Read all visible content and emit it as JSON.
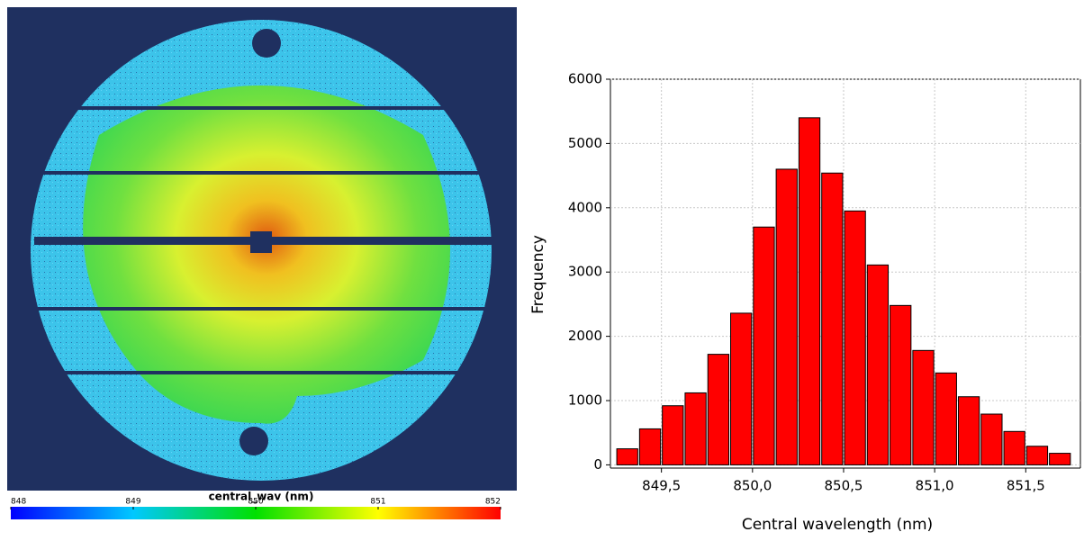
{
  "chart_data": [
    {
      "type": "image",
      "colorbar_title": "central_wav (nm)",
      "clim": [
        848,
        852
      ],
      "cticks": [
        848,
        849,
        850,
        851,
        852
      ],
      "colormap": [
        "#0000ff",
        "#00c8ff",
        "#00e000",
        "#ffff00",
        "#ff0000"
      ]
    },
    {
      "type": "histogram",
      "xlabel": "Central wavelength (nm)",
      "ylabel": "Frequency",
      "color": "#ff0000",
      "bins": [
        849.25,
        849.375,
        849.5,
        849.625,
        849.75,
        849.875,
        850,
        850.125,
        850.25,
        850.375,
        850.5,
        850.625,
        850.75,
        850.875,
        851,
        851.125,
        851.25,
        851.375,
        851.5,
        851.625,
        851.75
      ],
      "values": [
        250,
        560,
        920,
        1120,
        1720,
        2360,
        3700,
        4600,
        5400,
        4540,
        3950,
        3110,
        2480,
        1780,
        1430,
        1060,
        790,
        520,
        290,
        180
      ],
      "xlim": [
        849.22,
        851.8
      ],
      "ylim": [
        -50,
        6000
      ],
      "xticks": [
        {
          "value": 849.5,
          "label": "849,5"
        },
        {
          "value": 850,
          "label": "850,0"
        },
        {
          "value": 850.5,
          "label": "850,5"
        },
        {
          "value": 851,
          "label": "851,0"
        },
        {
          "value": 851.5,
          "label": "851,5"
        }
      ],
      "yticks": [
        0,
        1000,
        2000,
        3000,
        4000,
        5000,
        6000
      ],
      "grid": true
    }
  ]
}
